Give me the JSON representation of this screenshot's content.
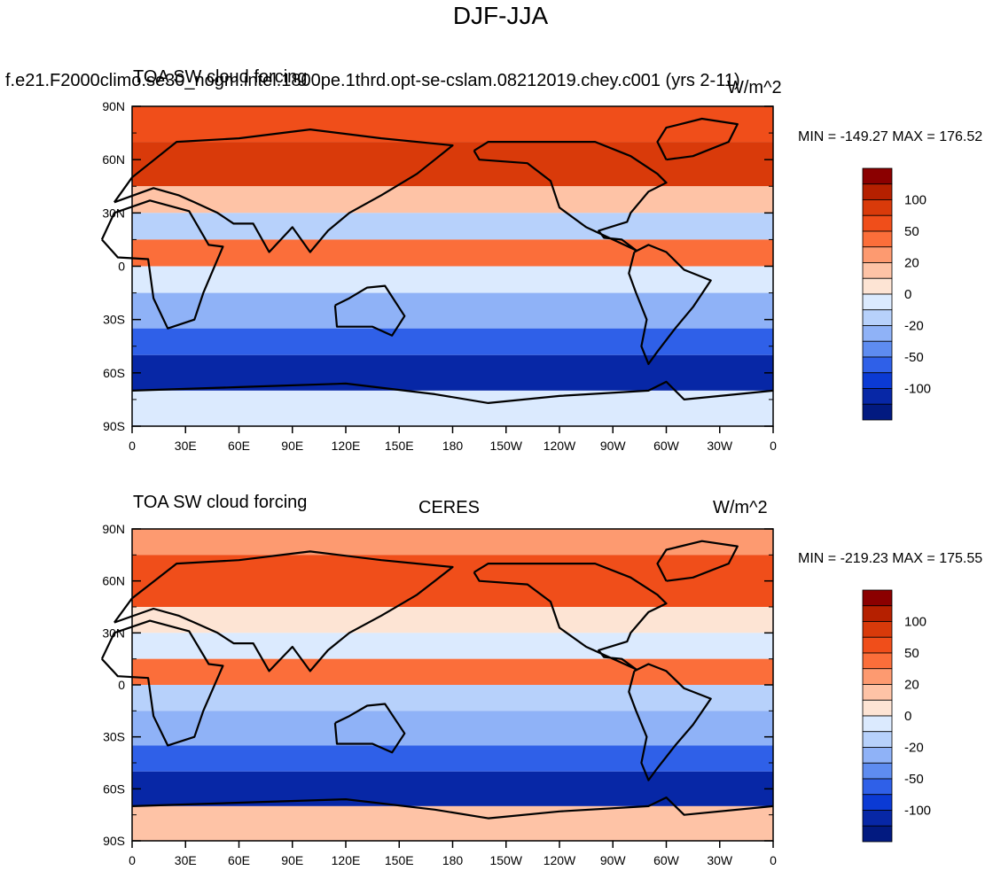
{
  "figure": {
    "title": "DJF-JJA"
  },
  "colorbar": {
    "levels": [
      120,
      100,
      80,
      50,
      30,
      20,
      10,
      0,
      -10,
      -20,
      -30,
      -50,
      -80,
      -100,
      -120
    ],
    "labels": [
      "100",
      "50",
      "20",
      "0",
      "-20",
      "-50",
      "-100"
    ],
    "colors": [
      "#8b0000",
      "#b52000",
      "#d93a0a",
      "#f04e1a",
      "#fb6e3a",
      "#fd9a70",
      "#fec3a6",
      "#fde4d4",
      "#dbeafe",
      "#b7d1fb",
      "#8fb2f7",
      "#5e8cf0",
      "#2f60e8",
      "#0b3ad4",
      "#0727a6",
      "#021a80"
    ]
  },
  "axes": {
    "lat_ticks": [
      "90N",
      "60N",
      "30N",
      "0",
      "30S",
      "60S",
      "90S"
    ],
    "lon_ticks": [
      "0",
      "30E",
      "60E",
      "90E",
      "120E",
      "150E",
      "180",
      "150W",
      "120W",
      "90W",
      "60W",
      "30W",
      "0"
    ]
  },
  "panels": [
    {
      "left_string": "f.e21.F2000climo.se30_nogm.intel.1800pe.1thrd.opt-se-cslam.08212019.chey.c001 (yrs 2-11)",
      "center_string": "TOA SW cloud forcing",
      "right_string": "W/m^2",
      "min_label": "MIN = -149.27",
      "max_label": "MAX = 176.52"
    },
    {
      "left_string": "TOA SW cloud forcing",
      "center_string": "CERES",
      "right_string": "W/m^2",
      "min_label": "MIN = -219.23",
      "max_label": "MAX = 175.55"
    }
  ],
  "map_data": {
    "projection": "cylindrical equidistant",
    "lon_range": [
      0,
      360
    ],
    "lat_range": [
      -90,
      90
    ],
    "zonal_bands_model": [
      {
        "lat": [
          70,
          90
        ],
        "value": 60
      },
      {
        "lat": [
          45,
          70
        ],
        "value": 80
      },
      {
        "lat": [
          30,
          45
        ],
        "value": 10
      },
      {
        "lat": [
          15,
          30
        ],
        "value": -15
      },
      {
        "lat": [
          0,
          15
        ],
        "value": 40
      },
      {
        "lat": [
          -15,
          0
        ],
        "value": -10
      },
      {
        "lat": [
          -35,
          -15
        ],
        "value": -25
      },
      {
        "lat": [
          -50,
          -35
        ],
        "value": -60
      },
      {
        "lat": [
          -70,
          -50
        ],
        "value": -110
      },
      {
        "lat": [
          -90,
          -70
        ],
        "value": -10
      }
    ],
    "zonal_bands_ceres": [
      {
        "lat": [
          75,
          90
        ],
        "value": 20
      },
      {
        "lat": [
          45,
          75
        ],
        "value": 70
      },
      {
        "lat": [
          30,
          45
        ],
        "value": 5
      },
      {
        "lat": [
          15,
          30
        ],
        "value": -10
      },
      {
        "lat": [
          0,
          15
        ],
        "value": 40
      },
      {
        "lat": [
          -15,
          0
        ],
        "value": -20
      },
      {
        "lat": [
          -35,
          -15
        ],
        "value": -30
      },
      {
        "lat": [
          -50,
          -35
        ],
        "value": -70
      },
      {
        "lat": [
          -70,
          -50
        ],
        "value": -120
      },
      {
        "lat": [
          -90,
          -70
        ],
        "value": 10
      }
    ]
  }
}
